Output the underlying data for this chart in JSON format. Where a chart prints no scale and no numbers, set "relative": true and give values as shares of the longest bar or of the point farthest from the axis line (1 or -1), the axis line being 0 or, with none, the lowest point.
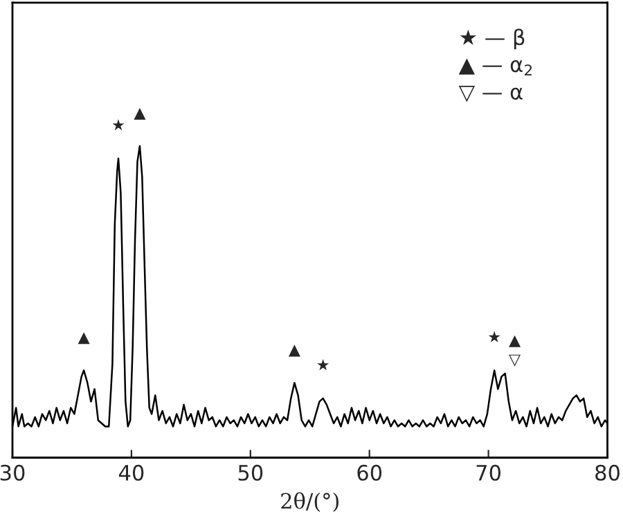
{
  "chart_data": {
    "type": "line",
    "xlabel": "2θ/(°)",
    "relative": true,
    "xlim": [
      30,
      80
    ],
    "xticks": [
      30,
      40,
      50,
      60,
      70,
      80
    ],
    "tick_labels": "x",
    "grid": false,
    "legend": false,
    "marker": "none",
    "line_style": "solid",
    "series": [
      {
        "color": "#000000",
        "x": [
          30.0,
          30.3,
          30.5,
          30.8,
          31.0,
          31.3,
          31.6,
          31.9,
          32.2,
          32.5,
          32.8,
          33.1,
          33.4,
          33.7,
          34.0,
          34.3,
          34.6,
          34.9,
          35.2,
          35.5,
          35.8,
          36.0,
          36.3,
          36.6,
          36.9,
          37.2,
          37.5,
          37.8,
          38.1,
          38.4,
          38.6,
          38.8,
          38.9,
          39.1,
          39.3,
          39.5,
          39.7,
          39.9,
          40.1,
          40.3,
          40.5,
          40.7,
          40.9,
          41.1,
          41.3,
          41.5,
          41.7,
          42.0,
          42.3,
          42.6,
          42.9,
          43.2,
          43.5,
          43.8,
          44.1,
          44.4,
          44.7,
          45.0,
          45.3,
          45.6,
          45.9,
          46.2,
          46.5,
          46.8,
          47.1,
          47.4,
          47.7,
          48.0,
          48.3,
          48.6,
          48.9,
          49.2,
          49.5,
          49.8,
          50.1,
          50.4,
          50.7,
          51.0,
          51.3,
          51.6,
          51.9,
          52.2,
          52.5,
          52.8,
          53.1,
          53.4,
          53.7,
          54.0,
          54.3,
          54.6,
          54.9,
          55.2,
          55.5,
          55.8,
          56.1,
          56.4,
          56.7,
          57.0,
          57.3,
          57.6,
          57.9,
          58.2,
          58.5,
          58.8,
          59.1,
          59.4,
          59.7,
          60.0,
          60.3,
          60.6,
          60.9,
          61.2,
          61.5,
          61.8,
          62.1,
          62.4,
          62.7,
          63.0,
          63.3,
          63.6,
          63.9,
          64.2,
          64.5,
          64.8,
          65.1,
          65.4,
          65.7,
          66.0,
          66.3,
          66.6,
          66.9,
          67.2,
          67.5,
          67.8,
          68.1,
          68.4,
          68.7,
          69.0,
          69.3,
          69.6,
          69.9,
          70.2,
          70.5,
          70.8,
          71.1,
          71.4,
          71.7,
          72.0,
          72.3,
          72.6,
          72.9,
          73.2,
          73.5,
          73.8,
          74.1,
          74.4,
          74.7,
          75.0,
          75.3,
          75.6,
          75.9,
          76.2,
          76.5,
          76.8,
          77.1,
          77.4,
          77.7,
          78.0,
          78.3,
          78.6,
          78.9,
          79.2,
          79.5,
          79.8,
          80.0
        ],
        "values": [
          0.1,
          0.16,
          0.1,
          0.14,
          0.1,
          0.11,
          0.1,
          0.13,
          0.1,
          0.14,
          0.12,
          0.15,
          0.11,
          0.16,
          0.12,
          0.15,
          0.11,
          0.16,
          0.14,
          0.2,
          0.26,
          0.28,
          0.24,
          0.18,
          0.22,
          0.12,
          0.11,
          0.1,
          0.1,
          0.3,
          0.75,
          0.92,
          0.96,
          0.85,
          0.5,
          0.18,
          0.1,
          0.12,
          0.35,
          0.7,
          0.95,
          1.0,
          0.9,
          0.62,
          0.35,
          0.16,
          0.14,
          0.2,
          0.12,
          0.15,
          0.11,
          0.13,
          0.1,
          0.14,
          0.11,
          0.17,
          0.12,
          0.14,
          0.1,
          0.15,
          0.11,
          0.16,
          0.12,
          0.13,
          0.1,
          0.12,
          0.1,
          0.13,
          0.11,
          0.12,
          0.1,
          0.13,
          0.11,
          0.14,
          0.11,
          0.13,
          0.1,
          0.12,
          0.1,
          0.13,
          0.11,
          0.14,
          0.11,
          0.13,
          0.12,
          0.19,
          0.24,
          0.2,
          0.12,
          0.1,
          0.12,
          0.1,
          0.14,
          0.18,
          0.19,
          0.17,
          0.14,
          0.11,
          0.13,
          0.1,
          0.14,
          0.11,
          0.16,
          0.12,
          0.15,
          0.11,
          0.16,
          0.12,
          0.15,
          0.11,
          0.14,
          0.11,
          0.13,
          0.1,
          0.12,
          0.1,
          0.11,
          0.1,
          0.12,
          0.1,
          0.11,
          0.1,
          0.12,
          0.1,
          0.11,
          0.1,
          0.13,
          0.11,
          0.14,
          0.1,
          0.12,
          0.1,
          0.13,
          0.11,
          0.12,
          0.1,
          0.13,
          0.11,
          0.12,
          0.1,
          0.14,
          0.22,
          0.28,
          0.22,
          0.26,
          0.27,
          0.18,
          0.12,
          0.15,
          0.11,
          0.13,
          0.1,
          0.15,
          0.11,
          0.16,
          0.11,
          0.13,
          0.1,
          0.14,
          0.11,
          0.13,
          0.12,
          0.15,
          0.17,
          0.19,
          0.2,
          0.18,
          0.19,
          0.13,
          0.15,
          0.11,
          0.13,
          0.1,
          0.12,
          0.11
        ]
      }
    ],
    "annotations": [
      {
        "text": "★",
        "x": 38.9,
        "y": 0.96
      },
      {
        "text": "▲",
        "x": 40.7,
        "y": 1.0
      },
      {
        "text": "▲",
        "x": 36.0,
        "y": 0.28
      },
      {
        "text": "▲",
        "x": 53.7,
        "y": 0.24
      },
      {
        "text": "★",
        "x": 56.1,
        "y": 0.19
      },
      {
        "text": "★",
        "x": 70.5,
        "y": 0.28
      },
      {
        "text": "▲",
        "x": 71.4,
        "y": 0.27
      },
      {
        "text": "▽",
        "x": 71.4,
        "y": 0.27
      },
      "★ — β",
      "▲ — α$_{2}$",
      "▽ — α"
    ]
  }
}
